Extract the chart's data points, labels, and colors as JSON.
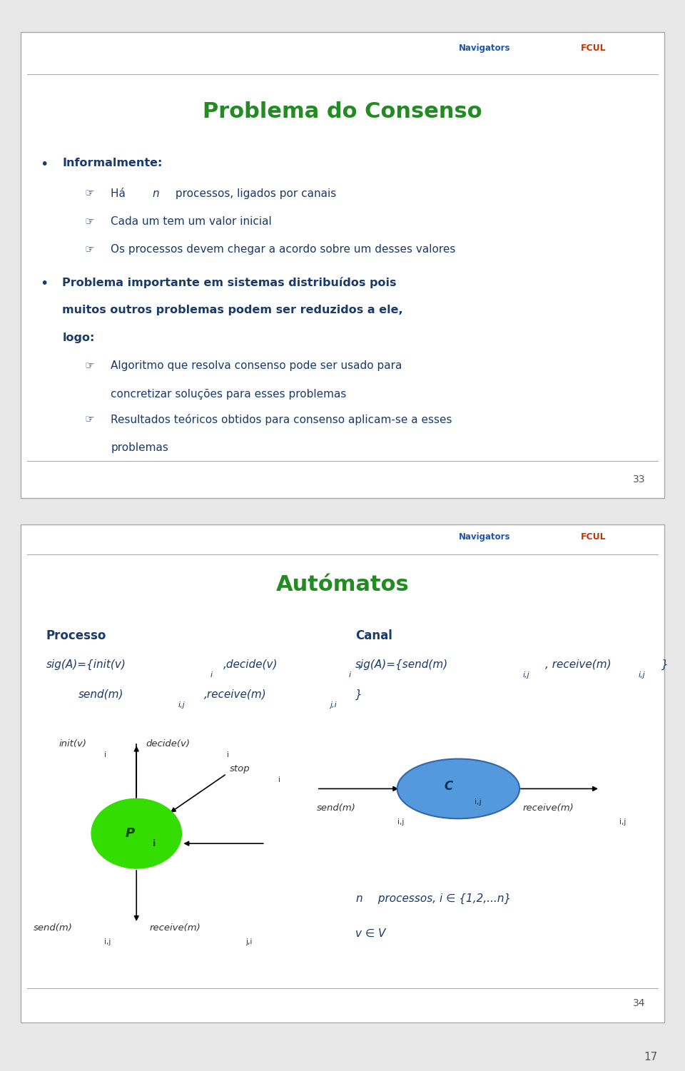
{
  "slide1": {
    "title": "Problema do Consenso",
    "title_color": "#228B22",
    "page_number": "33",
    "text_color": "#1a3a6b"
  },
  "slide2": {
    "title": "Autómatos",
    "title_color": "#228B22",
    "text_color": "#1a3a6b",
    "green_color": "#33dd00",
    "blue_color": "#5599dd",
    "page_number": "34"
  },
  "background_color": "#e8e8e8",
  "slide_bg": "#ffffff",
  "border_color": "#aaaaaa",
  "line_color": "#aaaaaa",
  "outer_number": "17"
}
